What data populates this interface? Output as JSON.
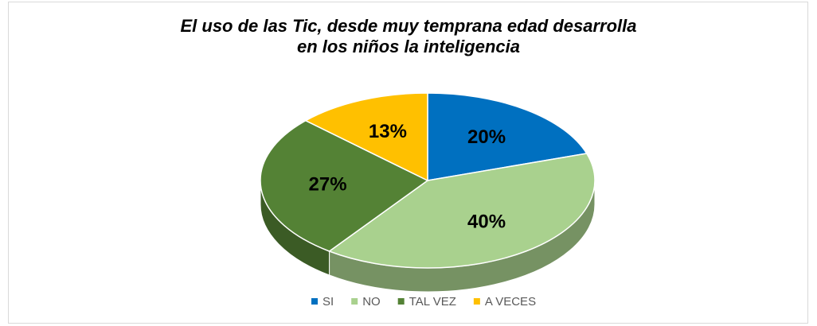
{
  "chart_data": {
    "type": "pie",
    "title": "El uso de las Tic, desde muy temprana edad desarrolla en los niños la inteligencia",
    "categories": [
      "SI",
      "NO",
      "TAL VEZ",
      "A VECES"
    ],
    "values": [
      20,
      40,
      27,
      13
    ],
    "value_labels": [
      "20%",
      "40%",
      "27%",
      "13%"
    ],
    "colors": [
      "#0070c0",
      "#a9d18e",
      "#548235",
      "#ffc000"
    ],
    "legend": "bottom"
  }
}
